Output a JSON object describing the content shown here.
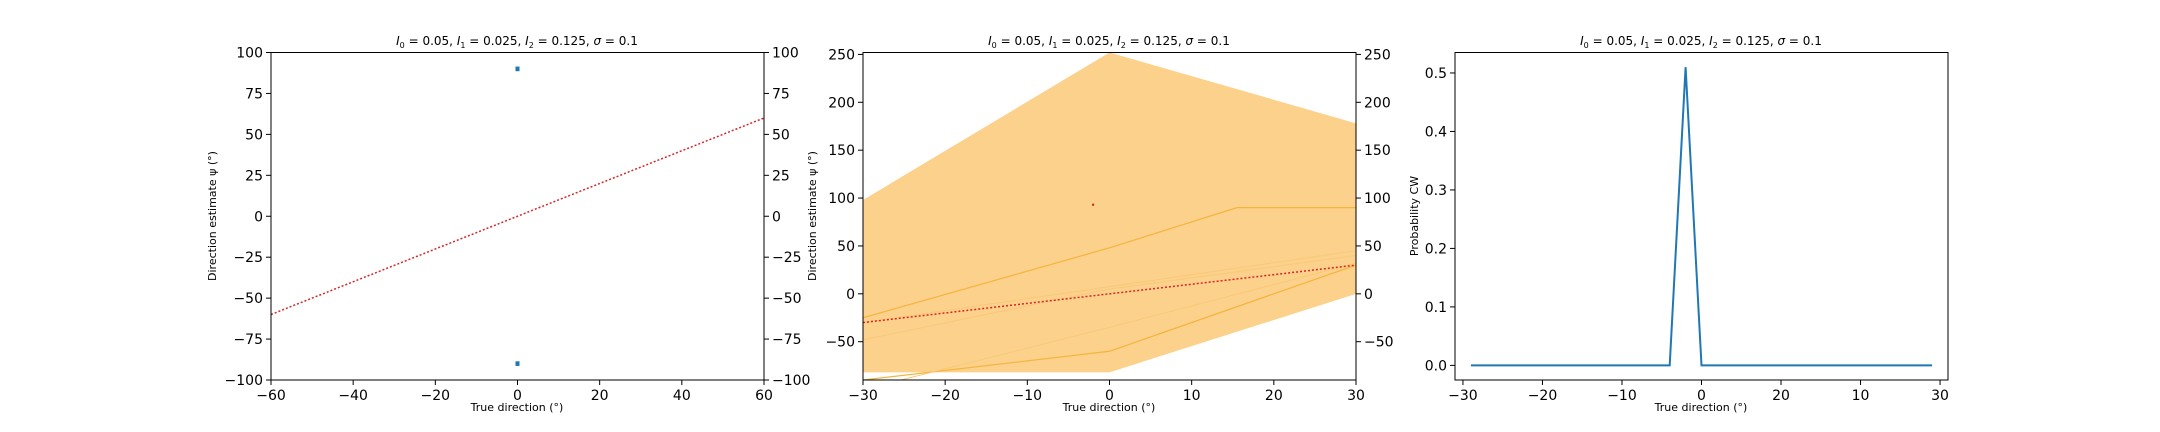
{
  "colors": {
    "blue": "#1f77b4",
    "red": "#d62728",
    "orange_fill": "#fcd18c",
    "orange_line": "#f5b53c",
    "orange_light": "#f8c977"
  },
  "chart_data": [
    {
      "type": "scatter",
      "title": "I_0 = 0.05, I_1 = 0.025, I_2 = 0.125, σ = 0.1",
      "title_parts": {
        "i0": "0.05",
        "i1": "0.025",
        "i2": "0.125",
        "sigma": "0.1"
      },
      "xlabel": "True direction (°)",
      "ylabel": "Direction estimate ψ (°)",
      "xlim": [
        -60,
        60
      ],
      "ylim": [
        -100,
        100
      ],
      "xticks": [
        "−60",
        "−40",
        "−20",
        "0",
        "20",
        "40",
        "60"
      ],
      "yticks": [
        "−100",
        "−75",
        "−50",
        "−25",
        "0",
        "25",
        "50",
        "75",
        "100"
      ],
      "right_axis_ticks": [
        "−100",
        "−75",
        "−50",
        "−25",
        "0",
        "25",
        "50",
        "75",
        "100"
      ],
      "points": [
        [
          0,
          89.5
        ],
        [
          0,
          90.5
        ],
        [
          0,
          -89.5
        ],
        [
          0,
          -90.5
        ]
      ],
      "identity_line": [
        [
          -60,
          -60
        ],
        [
          60,
          60
        ]
      ]
    },
    {
      "type": "area",
      "title": "I_0 = 0.05, I_1 = 0.025, I_2 = 0.125, σ = 0.1",
      "title_parts": {
        "i0": "0.05",
        "i1": "0.025",
        "i2": "0.125",
        "sigma": "0.1"
      },
      "xlabel": "True direction (°)",
      "ylabel": "Direction estimate ψ (°)",
      "xlim": [
        -30,
        30
      ],
      "ylim": [
        -90,
        252
      ],
      "xticks": [
        "−30",
        "−20",
        "−10",
        "0",
        "10",
        "20",
        "30"
      ],
      "yticks": [
        "−50",
        "0",
        "50",
        "100",
        "150",
        "200",
        "250"
      ],
      "right_axis_ticks": [
        "−50",
        "0",
        "50",
        "100",
        "150",
        "200",
        "250"
      ],
      "band_upper": [
        [
          -30,
          98
        ],
        [
          0,
          252
        ],
        [
          30,
          178
        ]
      ],
      "band_lower": [
        [
          30,
          0
        ],
        [
          0,
          -82
        ],
        [
          -30,
          -82
        ]
      ],
      "inner_upper": [
        [
          -30,
          -25
        ],
        [
          0,
          48
        ],
        [
          15.5,
          90
        ],
        [
          30,
          90
        ]
      ],
      "inner_lower": [
        [
          -30,
          -90
        ],
        [
          0,
          -60
        ],
        [
          30,
          30
        ]
      ],
      "light_upper": [
        [
          -30,
          -48
        ],
        [
          0,
          5
        ],
        [
          30,
          40
        ]
      ],
      "light_lower": [
        [
          -30,
          -100
        ],
        [
          0,
          -35
        ],
        [
          30,
          32
        ]
      ],
      "faint_line": [
        [
          -30,
          -30
        ],
        [
          30,
          45
        ]
      ],
      "identity_line": [
        [
          -30,
          -30
        ],
        [
          30,
          30
        ]
      ],
      "outlier_point": [
        -2,
        93
      ]
    },
    {
      "type": "line",
      "title": "I_0 = 0.05, I_1 = 0.025, I_2 = 0.125, σ = 0.1",
      "title_parts": {
        "i0": "0.05",
        "i1": "0.025",
        "i2": "0.125",
        "sigma": "0.1"
      },
      "xlabel": "True direction (°)",
      "ylabel": "Probability CW",
      "xlim": [
        -31,
        31
      ],
      "ylim": [
        -0.025,
        0.535
      ],
      "xticks": [
        "−30",
        "−20",
        "−10",
        "0",
        "20",
        "10",
        "30"
      ],
      "yticks": [
        "0.0",
        "0.1",
        "0.2",
        "0.3",
        "0.4",
        "0.5"
      ],
      "x": [
        -29,
        -4,
        -2,
        0,
        29
      ],
      "y": [
        0,
        0,
        0.51,
        0,
        0
      ]
    }
  ]
}
